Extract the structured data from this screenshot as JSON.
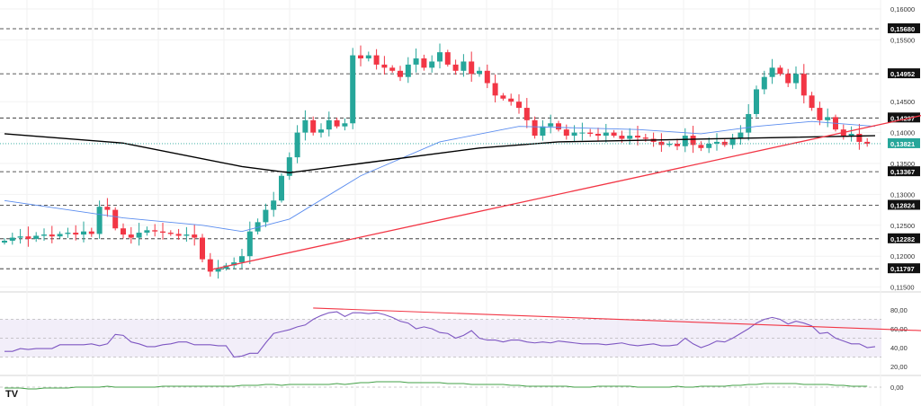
{
  "chart_data": {
    "type": "candlestick",
    "title": "",
    "price_axis": {
      "ticks": [
        "0,16000",
        "0,15500",
        "0,14500",
        "0,14000",
        "0,13500",
        "0,13000",
        "0,12500",
        "0,12000",
        "0,11500"
      ],
      "tick_values": [
        0.16,
        0.155,
        0.145,
        0.14,
        0.135,
        0.13,
        0.125,
        0.12,
        0.115
      ],
      "ylim": [
        0.1125,
        0.1615
      ]
    },
    "levels": [
      {
        "label": "0,15680",
        "value": 0.1568
      },
      {
        "label": "0,14952",
        "value": 0.14952
      },
      {
        "label": "0,14237",
        "value": 0.14237
      },
      {
        "label": "0,13367",
        "value": 0.13367
      },
      {
        "label": "0,12824",
        "value": 0.12824
      },
      {
        "label": "0,12282",
        "value": 0.12282
      },
      {
        "label": "0,11797",
        "value": 0.11797
      }
    ],
    "current_price": {
      "label": "0,13821",
      "value": 0.13821,
      "color": "#26a69a"
    },
    "closes": [
      0.1225,
      0.123,
      0.1232,
      0.1228,
      0.1233,
      0.1235,
      0.1232,
      0.1236,
      0.1238,
      0.1235,
      0.124,
      0.1236,
      0.128,
      0.1275,
      0.1245,
      0.1235,
      0.123,
      0.1238,
      0.1242,
      0.124,
      0.1238,
      0.1236,
      0.1233,
      0.1235,
      0.123,
      0.1195,
      0.1175,
      0.118,
      0.1185,
      0.119,
      0.12,
      0.124,
      0.1255,
      0.1275,
      0.129,
      0.133,
      0.136,
      0.14,
      0.142,
      0.14,
      0.1405,
      0.142,
      0.141,
      0.1415,
      0.1525,
      0.152,
      0.1525,
      0.151,
      0.1505,
      0.15,
      0.149,
      0.151,
      0.152,
      0.1505,
      0.1515,
      0.153,
      0.151,
      0.15,
      0.1515,
      0.1495,
      0.15,
      0.148,
      0.146,
      0.1455,
      0.145,
      0.144,
      0.142,
      0.1395,
      0.141,
      0.1415,
      0.1405,
      0.1395,
      0.14,
      0.14,
      0.1398,
      0.1395,
      0.14,
      0.1395,
      0.139,
      0.1395,
      0.1392,
      0.139,
      0.1385,
      0.138,
      0.1382,
      0.1378,
      0.1395,
      0.138,
      0.1375,
      0.1382,
      0.1385,
      0.138,
      0.139,
      0.14,
      0.143,
      0.147,
      0.149,
      0.1505,
      0.1495,
      0.148,
      0.1495,
      0.146,
      0.144,
      0.142,
      0.1425,
      0.1405,
      0.1395,
      0.1398,
      0.1385,
      0.1382
    ],
    "ma_long": {
      "color": "#000000",
      "points": [
        [
          0,
          0.1398
        ],
        [
          15,
          0.1383
        ],
        [
          30,
          0.1345
        ],
        [
          36,
          0.1335
        ],
        [
          45,
          0.135
        ],
        [
          60,
          0.1375
        ],
        [
          70,
          0.1385
        ],
        [
          90,
          0.139
        ],
        [
          110,
          0.1395
        ]
      ]
    },
    "ma_short": {
      "color": "#5b8def",
      "points": [
        [
          0,
          0.129
        ],
        [
          15,
          0.1262
        ],
        [
          25,
          0.125
        ],
        [
          30,
          0.124
        ],
        [
          36,
          0.126
        ],
        [
          45,
          0.133
        ],
        [
          55,
          0.1385
        ],
        [
          65,
          0.141
        ],
        [
          80,
          0.1405
        ],
        [
          88,
          0.1398
        ],
        [
          95,
          0.141
        ],
        [
          102,
          0.1418
        ],
        [
          110,
          0.141
        ]
      ]
    },
    "trendline": {
      "color": "#f23645",
      "points": [
        [
          26,
          0.1178
        ],
        [
          116,
          0.1428
        ]
      ]
    },
    "rsi": {
      "axis": [
        "80,00",
        "60,00",
        "40,00",
        "20,00"
      ],
      "axis_values": [
        80,
        60,
        40,
        20
      ],
      "band": [
        30,
        70
      ],
      "color": "#7e57c2",
      "values": [
        36,
        36,
        39,
        38,
        39,
        39,
        39,
        43,
        43,
        43,
        43,
        44,
        42,
        44,
        54,
        53,
        46,
        44,
        41,
        41,
        43,
        44,
        46,
        46,
        43,
        43,
        43,
        42,
        42,
        30,
        31,
        34,
        34,
        45,
        55,
        57,
        59,
        62,
        64,
        70,
        74,
        77,
        78,
        73,
        77,
        77,
        76,
        77,
        75,
        72,
        68,
        66,
        60,
        62,
        60,
        56,
        55,
        50,
        53,
        58,
        50,
        48,
        48,
        46,
        48,
        48,
        46,
        45,
        46,
        45,
        47,
        46,
        45,
        44,
        44,
        44,
        43,
        44,
        45,
        43,
        42,
        43,
        44,
        42,
        42,
        43,
        50,
        44,
        40,
        43,
        47,
        46,
        50,
        55,
        60,
        66,
        70,
        72,
        70,
        65,
        68,
        66,
        63,
        55,
        56,
        50,
        47,
        44,
        44,
        40,
        41
      ],
      "trendline": {
        "color": "#f23645",
        "points": [
          [
            39,
            82
          ],
          [
            116,
            58
          ]
        ]
      }
    },
    "oscillator": {
      "axis": [
        "0,00"
      ],
      "color": "#43a047",
      "values": [
        -1,
        -1,
        -1,
        -2,
        -2,
        -1,
        -1,
        -1,
        -1,
        0,
        0,
        0,
        0,
        1,
        0,
        0,
        0,
        0,
        0,
        0,
        1,
        1,
        1,
        1,
        1,
        1,
        1,
        1,
        1,
        1,
        2,
        2,
        2,
        3,
        3,
        2,
        3,
        3,
        3,
        3,
        3,
        3,
        4,
        3,
        4,
        5,
        5,
        6,
        6,
        6,
        6,
        5,
        5,
        5,
        5,
        5,
        4,
        4,
        4,
        3,
        3,
        3,
        3,
        3,
        2,
        2,
        1,
        1,
        1,
        1,
        1,
        1,
        0,
        0,
        0,
        1,
        1,
        1,
        1,
        1,
        0,
        0,
        0,
        0,
        0,
        1,
        0,
        0,
        1,
        1,
        1,
        1,
        2,
        2,
        3,
        3,
        4,
        4,
        4,
        4,
        4,
        3,
        3,
        3,
        3,
        2,
        2,
        1,
        1,
        1
      ]
    }
  },
  "logo": "TV"
}
